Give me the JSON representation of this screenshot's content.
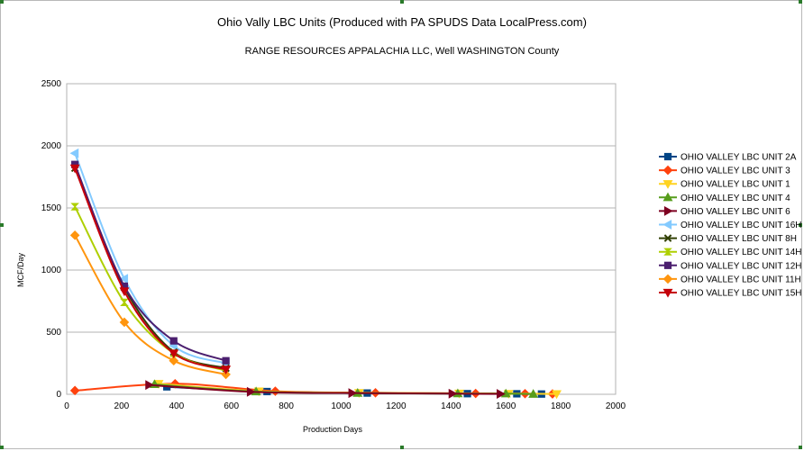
{
  "chart_data": {
    "type": "line",
    "title": "Ohio Vally LBC Units (Produced with PA SPUDS Data LocalPress.com)",
    "subtitle": "RANGE RESOURCES APPALACHIA LLC, Well  WASHINGTON County",
    "xlabel": "Production Days",
    "ylabel": "MCF/Day",
    "xlim": [
      0,
      2000
    ],
    "ylim": [
      0,
      2500
    ],
    "xticks": [
      0,
      200,
      400,
      600,
      800,
      1000,
      1200,
      1400,
      1600,
      1800,
      2000
    ],
    "yticks": [
      0,
      500,
      1000,
      1500,
      2000,
      2500
    ],
    "grid": true,
    "legend_position": "right",
    "series": [
      {
        "name": "OHIO VALLEY LBC UNIT 2A",
        "color": "#004586",
        "marker": "square",
        "points": [
          [
            365,
            60
          ],
          [
            730,
            22
          ],
          [
            1095,
            10
          ],
          [
            1460,
            5
          ],
          [
            1640,
            4
          ],
          [
            1730,
            2
          ]
        ]
      },
      {
        "name": "OHIO VALLEY LBC UNIT 3",
        "color": "#ff420e",
        "marker": "diamond",
        "points": [
          [
            30,
            30
          ],
          [
            395,
            85
          ],
          [
            760,
            25
          ],
          [
            1125,
            12
          ],
          [
            1490,
            7
          ],
          [
            1670,
            5
          ],
          [
            1770,
            3
          ]
        ]
      },
      {
        "name": "OHIO VALLEY LBC UNIT 1",
        "color": "#ffd320",
        "marker": "triangle-down",
        "points": [
          [
            335,
            85
          ],
          [
            700,
            25
          ],
          [
            1065,
            12
          ],
          [
            1430,
            7
          ],
          [
            1610,
            5
          ],
          [
            1785,
            3
          ]
        ]
      },
      {
        "name": "OHIO VALLEY LBC UNIT 4",
        "color": "#579d1c",
        "marker": "triangle-up",
        "points": [
          [
            320,
            80
          ],
          [
            690,
            22
          ],
          [
            1060,
            10
          ],
          [
            1425,
            6
          ],
          [
            1600,
            5
          ],
          [
            1700,
            2
          ]
        ]
      },
      {
        "name": "OHIO VALLEY LBC UNIT 6",
        "color": "#7e0021",
        "marker": "triangle-right",
        "points": [
          [
            300,
            75
          ],
          [
            670,
            20
          ],
          [
            1040,
            10
          ],
          [
            1405,
            5
          ],
          [
            1580,
            3
          ]
        ]
      },
      {
        "name": "OHIO VALLEY LBC UNIT 16H",
        "color": "#83caff",
        "marker": "triangle-left",
        "points": [
          [
            30,
            1940
          ],
          [
            210,
            930
          ],
          [
            390,
            390
          ],
          [
            580,
            250
          ]
        ]
      },
      {
        "name": "OHIO VALLEY LBC UNIT 8H",
        "color": "#314004",
        "marker": "x",
        "points": [
          [
            30,
            1820
          ],
          [
            210,
            860
          ],
          [
            390,
            340
          ],
          [
            580,
            210
          ]
        ]
      },
      {
        "name": "OHIO VALLEY LBC UNIT 14H",
        "color": "#aecf00",
        "marker": "hourglass",
        "points": [
          [
            30,
            1510
          ],
          [
            210,
            740
          ],
          [
            390,
            330
          ],
          [
            580,
            190
          ]
        ]
      },
      {
        "name": "OHIO VALLEY LBC UNIT 12H",
        "color": "#4b1f6f",
        "marker": "square",
        "points": [
          [
            30,
            1850
          ],
          [
            210,
            870
          ],
          [
            390,
            430
          ],
          [
            580,
            270
          ]
        ]
      },
      {
        "name": "OHIO VALLEY LBC UNIT 11H",
        "color": "#ff950e",
        "marker": "diamond",
        "points": [
          [
            30,
            1280
          ],
          [
            210,
            580
          ],
          [
            390,
            270
          ],
          [
            580,
            160
          ]
        ]
      },
      {
        "name": "OHIO VALLEY LBC UNIT 15H",
        "color": "#c5000b",
        "marker": "triangle-down",
        "points": [
          [
            30,
            1820
          ],
          [
            210,
            830
          ],
          [
            390,
            330
          ],
          [
            580,
            200
          ]
        ]
      }
    ]
  }
}
